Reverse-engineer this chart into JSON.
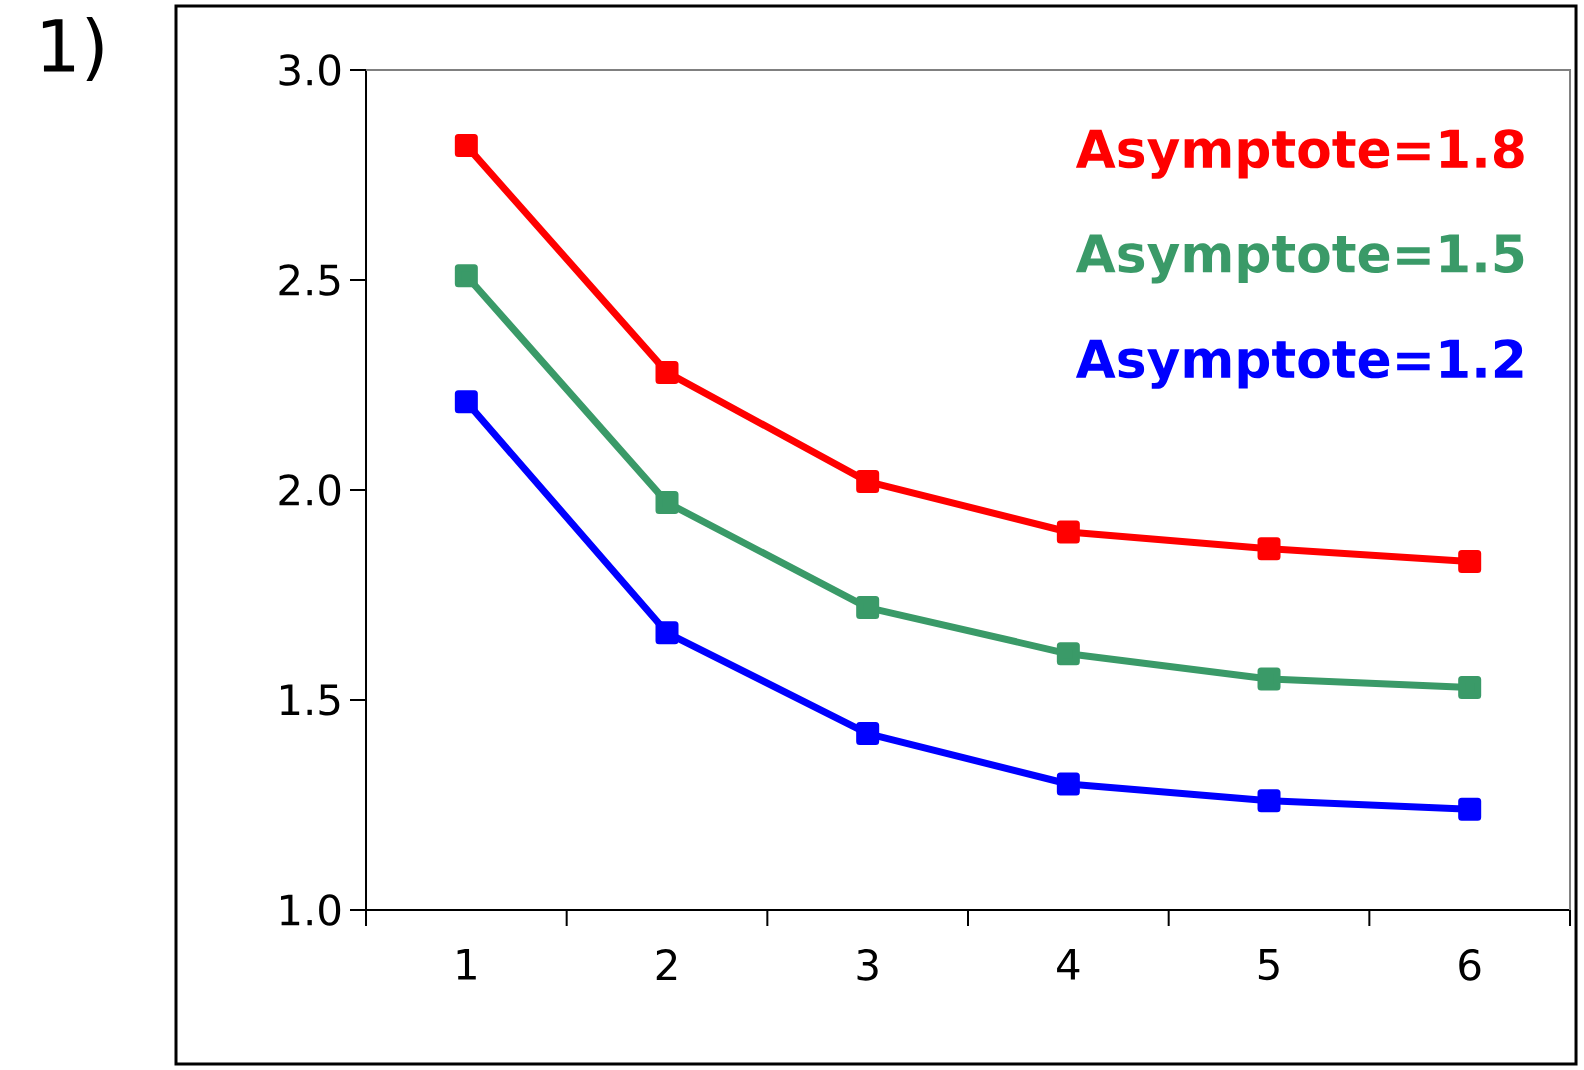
{
  "chart_data": {
    "type": "line",
    "annotations": [
      "1)"
    ],
    "categories": [
      "1",
      "2",
      "3",
      "4",
      "5",
      "6"
    ],
    "series": [
      {
        "name": "Asymptote=1.8",
        "color": "#ff0000",
        "values": [
          2.82,
          2.28,
          2.02,
          1.9,
          1.86,
          1.83
        ]
      },
      {
        "name": "Asymptote=1.5",
        "color": "#3a9a68",
        "values": [
          2.51,
          1.97,
          1.72,
          1.61,
          1.55,
          1.53
        ]
      },
      {
        "name": "Asymptote=1.2",
        "color": "#0000ff",
        "values": [
          2.21,
          1.66,
          1.42,
          1.3,
          1.26,
          1.24
        ]
      }
    ],
    "ylim": [
      1,
      3
    ],
    "yticks": [
      {
        "value": 1,
        "label": "1.0"
      },
      {
        "value": 1.5,
        "label": "1.5"
      },
      {
        "value": 2,
        "label": "2.0"
      },
      {
        "value": 2.5,
        "label": "2.5"
      },
      {
        "value": 3,
        "label": "3.0"
      }
    ],
    "marker": "square",
    "line_style": "solid",
    "legend": "top right",
    "grid": false
  }
}
